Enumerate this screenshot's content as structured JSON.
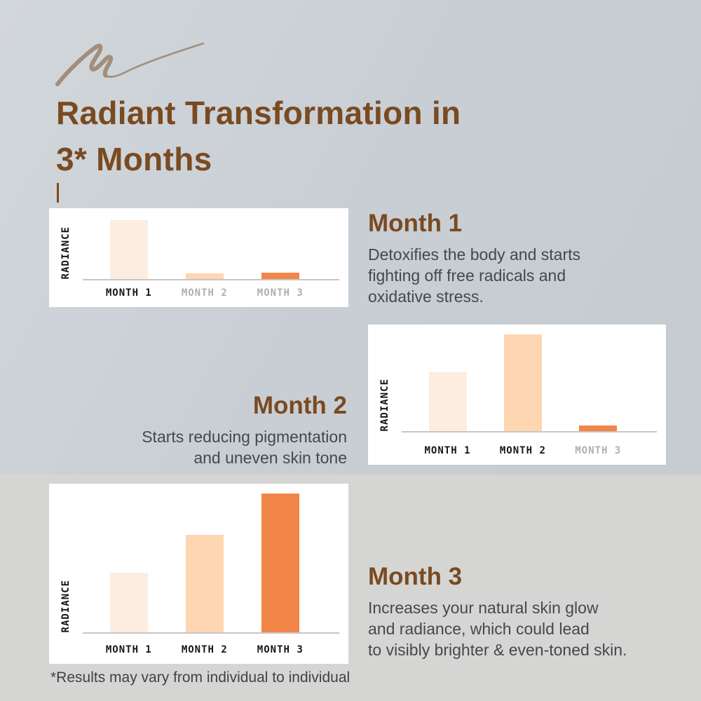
{
  "header": {
    "title_line1": "Radiant Transformation in",
    "title_line2": "3* Months"
  },
  "sections": [
    {
      "heading": "Month 1",
      "body_lines": [
        "Detoxifies the body and starts",
        "fighting off free radicals and",
        "oxidative stress."
      ]
    },
    {
      "heading": "Month 2",
      "body_lines": [
        "Starts reducing pigmentation",
        "and uneven skin tone"
      ]
    },
    {
      "heading": "Month 3",
      "body_lines": [
        "Increases your natural skin glow",
        "and radiance, which could lead",
        "to visibly brighter & even-toned skin."
      ]
    }
  ],
  "footnote": "*Results may vary from individual to individual",
  "icons": {
    "squiggle": "pencil-squiggle"
  },
  "colors": {
    "title_brown": "#7A4A21",
    "body_text": "#45484C",
    "bar_month1": "#FCEDE0",
    "bar_month2": "#FFD6B2",
    "bar_month3": "#F28548",
    "axis_line": "#C6C6C6",
    "label_dark": "#161616",
    "label_gray": "#AFAFAF",
    "bg_top": "#C8CED4",
    "bg_bottom": "#D5D6D4",
    "squiggle": "#A28E7B",
    "chart_bg": "#FFFFFF"
  },
  "chart_data": [
    {
      "type": "bar",
      "title": "",
      "ylabel": "RADIANCE",
      "xlabel": "",
      "categories": [
        "MONTH 1",
        "MONTH 2",
        "MONTH 3"
      ],
      "values": [
        84,
        8,
        9
      ],
      "value_units": "relative radiance (rendered px height)",
      "bar_colors": [
        "#FCEDE0",
        "#FFD6B2",
        "#F28548"
      ],
      "active_labels": [
        true,
        false,
        false
      ],
      "grid": false,
      "legend": "none",
      "highlighted_month": 1
    },
    {
      "type": "bar",
      "title": "",
      "ylabel": "RADIANCE",
      "xlabel": "",
      "categories": [
        "MONTH 1",
        "MONTH 2",
        "MONTH 3"
      ],
      "values": [
        84,
        138,
        8
      ],
      "value_units": "relative radiance (rendered px height)",
      "bar_colors": [
        "#FCEDE0",
        "#FFD6B2",
        "#F28548"
      ],
      "active_labels": [
        true,
        true,
        false
      ],
      "grid": false,
      "legend": "none",
      "highlighted_month": 2
    },
    {
      "type": "bar",
      "title": "",
      "ylabel": "RADIANCE",
      "xlabel": "",
      "categories": [
        "MONTH 1",
        "MONTH 2",
        "MONTH 3"
      ],
      "values": [
        85,
        139,
        198
      ],
      "value_units": "relative radiance (rendered px height)",
      "bar_colors": [
        "#FCEDE0",
        "#FFD6B2",
        "#F28548"
      ],
      "active_labels": [
        true,
        true,
        true
      ],
      "grid": false,
      "legend": "none",
      "highlighted_month": 3
    }
  ]
}
